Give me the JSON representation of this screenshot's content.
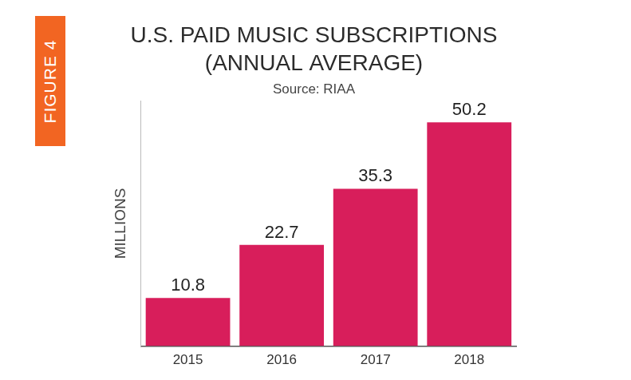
{
  "chart_data": {
    "type": "bar",
    "title": [
      "U.S. PAID MUSIC SUBSCRIPTIONS",
      "(ANNUAL AVERAGE)"
    ],
    "subtitle": "Source: RIAA",
    "y_label": "MILLIONS",
    "annotations": [
      "FIGURE 4"
    ],
    "categories": [
      "2015",
      "2016",
      "2017",
      "2018"
    ],
    "values": [
      10.8,
      22.7,
      35.3,
      50.2
    ],
    "color": "#d81e5b",
    "ylim": [
      0,
      55
    ],
    "yticks": [],
    "grid": false,
    "data_labels": true,
    "tick_labels": "x"
  }
}
